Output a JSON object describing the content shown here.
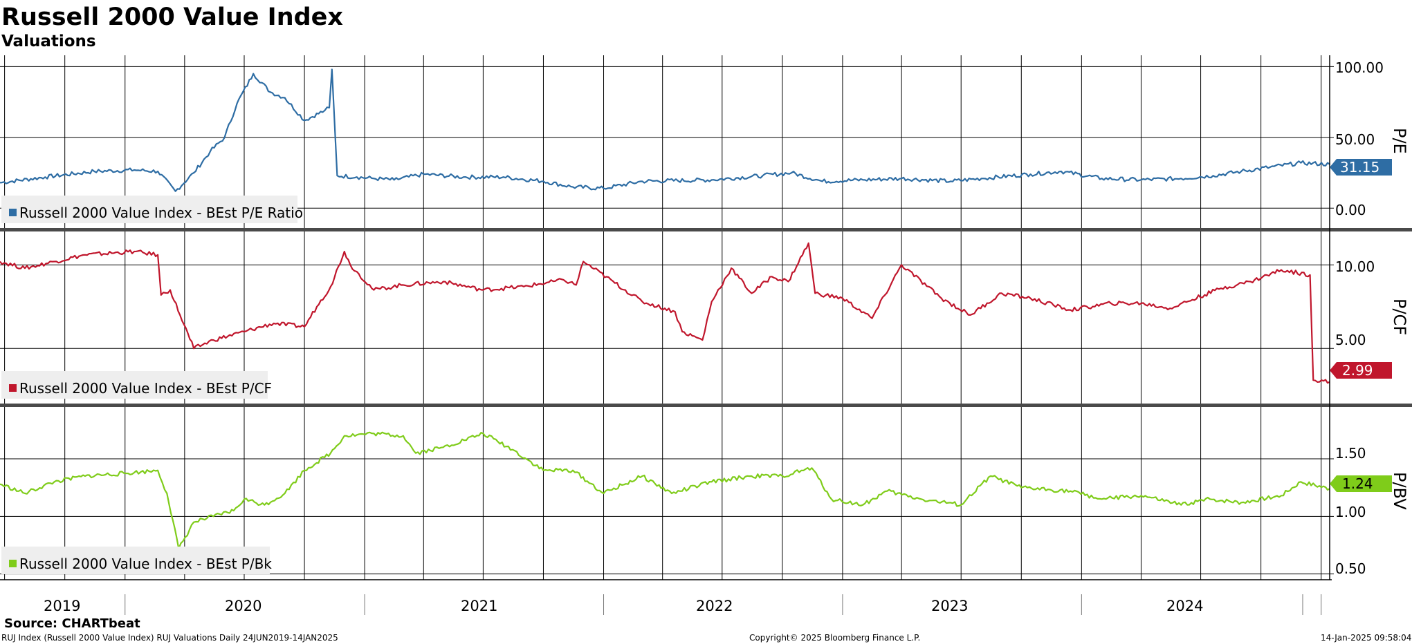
{
  "title": "Russell 2000 Value Index",
  "subtitle": "Valuations",
  "source": "Source: CHARTbeat",
  "footer": {
    "left": "RUJ Index (Russell 2000 Value Index) RUJ Valuations  Daily 24JUN2019-14JAN2025",
    "center": "Copyright© 2025 Bloomberg Finance L.P.",
    "right": "14-Jan-2025 09:58:04"
  },
  "colors": {
    "pe": "#2e6da4",
    "pcf": "#c0162c",
    "pbv": "#7fcc1a",
    "legend_bg": "#eeeeee"
  },
  "chart_data": [
    {
      "type": "line",
      "name": "P/E",
      "axis_label": "P/E",
      "legend": "Russell 2000 Value Index - BEst P/E Ratio",
      "last_value": "31.15",
      "y_ticks": [
        "100.00",
        "50.00",
        "0.00"
      ],
      "ylim": [
        -14,
        108
      ],
      "x": [
        "2019-06-24",
        "2019-09-01",
        "2019-11-15",
        "2020-01-15",
        "2020-02-20",
        "2020-03-18",
        "2020-04-15",
        "2020-05-10",
        "2020-06-01",
        "2020-06-20",
        "2020-07-15",
        "2020-08-10",
        "2020-09-01",
        "2020-10-01",
        "2020-11-01",
        "2020-11-08",
        "2020-11-12",
        "2020-11-20",
        "2020-12-20",
        "2021-01-15",
        "2021-02-15",
        "2021-04-01",
        "2021-06-01",
        "2021-08-01",
        "2021-10-01",
        "2021-11-15",
        "2022-01-01",
        "2022-03-01",
        "2022-06-15",
        "2022-09-01",
        "2022-10-15",
        "2022-12-01",
        "2023-02-01",
        "2023-04-01",
        "2023-06-15",
        "2023-08-01",
        "2023-10-15",
        "2023-12-01",
        "2024-02-01",
        "2024-04-01",
        "2024-06-01",
        "2024-07-20",
        "2024-09-01",
        "2024-10-15",
        "2024-12-01",
        "2025-01-14"
      ],
      "y": [
        18,
        22,
        26,
        27,
        26,
        12,
        25,
        40,
        50,
        74,
        95,
        82,
        78,
        62,
        69,
        71,
        98,
        23,
        22,
        21,
        20,
        24,
        22,
        22,
        19,
        15,
        14,
        19,
        20,
        23,
        25,
        19,
        20,
        21,
        19,
        21,
        24,
        26,
        21,
        20,
        21,
        23,
        26,
        29,
        32,
        31
      ]
    },
    {
      "type": "line",
      "name": "P/CF",
      "axis_label": "P/CF",
      "legend": "Russell 2000 Value Index - BEst P/CF",
      "last_value": "2.99",
      "y_ticks": [
        "10.00",
        "5.00"
      ],
      "ylim": [
        1.7,
        12
      ],
      "x": [
        "2019-06-24",
        "2019-08-01",
        "2019-09-15",
        "2019-11-01",
        "2020-01-15",
        "2020-02-20",
        "2020-02-25",
        "2020-03-10",
        "2020-03-25",
        "2020-04-15",
        "2020-05-15",
        "2020-07-01",
        "2020-08-15",
        "2020-10-01",
        "2020-10-20",
        "2020-11-10",
        "2020-12-01",
        "2020-12-10",
        "2021-01-15",
        "2021-03-01",
        "2021-05-01",
        "2021-07-01",
        "2021-09-01",
        "2021-11-01",
        "2021-11-20",
        "2021-12-01",
        "2022-03-01",
        "2022-04-20",
        "2022-05-01",
        "2022-06-01",
        "2022-06-15",
        "2022-07-15",
        "2022-08-15",
        "2022-09-15",
        "2022-10-10",
        "2022-11-10",
        "2022-11-20",
        "2023-01-01",
        "2023-02-15",
        "2023-04-01",
        "2023-06-01",
        "2023-07-15",
        "2023-09-01",
        "2023-10-15",
        "2023-12-15",
        "2024-02-15",
        "2024-04-01",
        "2024-05-15",
        "2024-08-01",
        "2024-09-15",
        "2024-11-01",
        "2024-12-15",
        "2024-12-20",
        "2025-01-14"
      ],
      "y": [
        10.2,
        9.8,
        10.2,
        10.6,
        10.8,
        10.6,
        8.2,
        8.5,
        7.0,
        5.0,
        5.5,
        6.0,
        6.5,
        6.3,
        7.5,
        8.7,
        10.8,
        10.0,
        8.5,
        8.8,
        9.0,
        8.5,
        8.7,
        9.1,
        8.8,
        10.2,
        7.8,
        7.2,
        6.0,
        5.5,
        7.8,
        9.8,
        8.3,
        9.3,
        9.0,
        11.3,
        8.3,
        8.0,
        6.8,
        10.0,
        8.0,
        7.0,
        8.3,
        8.0,
        7.3,
        7.7,
        7.7,
        7.4,
        8.6,
        9.0,
        9.7,
        9.4,
        3.1,
        2.99
      ]
    },
    {
      "type": "line",
      "name": "P/BV",
      "axis_label": "P/BV",
      "legend": "Russell 2000 Value Index - BEst P/Bk",
      "last_value": "1.24",
      "y_ticks": [
        "1.50",
        "1.00",
        "0.50"
      ],
      "ylim": [
        0.45,
        1.95
      ],
      "x": [
        "2019-06-24",
        "2019-08-01",
        "2019-09-15",
        "2019-11-01",
        "2020-01-15",
        "2020-02-20",
        "2020-03-05",
        "2020-03-23",
        "2020-04-15",
        "2020-05-15",
        "2020-06-15",
        "2020-07-01",
        "2020-08-01",
        "2020-09-01",
        "2020-10-01",
        "2020-11-10",
        "2020-12-01",
        "2021-01-15",
        "2021-03-01",
        "2021-03-20",
        "2021-05-01",
        "2021-07-01",
        "2021-08-15",
        "2021-10-01",
        "2021-11-15",
        "2022-01-01",
        "2022-03-01",
        "2022-04-15",
        "2022-06-15",
        "2022-08-15",
        "2022-10-01",
        "2022-11-15",
        "2022-12-15",
        "2023-02-01",
        "2023-03-10",
        "2023-05-01",
        "2023-07-01",
        "2023-08-15",
        "2023-10-01",
        "2023-12-15",
        "2024-02-01",
        "2024-04-01",
        "2024-06-01",
        "2024-07-15",
        "2024-09-01",
        "2024-11-01",
        "2024-12-01",
        "2025-01-14"
      ],
      "y": [
        1.28,
        1.2,
        1.3,
        1.35,
        1.38,
        1.4,
        1.2,
        0.72,
        0.95,
        1.0,
        1.05,
        1.15,
        1.1,
        1.2,
        1.4,
        1.55,
        1.7,
        1.72,
        1.7,
        1.55,
        1.6,
        1.72,
        1.58,
        1.4,
        1.4,
        1.2,
        1.35,
        1.2,
        1.3,
        1.35,
        1.35,
        1.42,
        1.15,
        1.1,
        1.22,
        1.15,
        1.1,
        1.35,
        1.25,
        1.22,
        1.15,
        1.18,
        1.1,
        1.15,
        1.12,
        1.18,
        1.3,
        1.24
      ]
    }
  ],
  "x_axis": {
    "start": "2019-06-24",
    "end": "2025-01-14",
    "year_labels": [
      "2019",
      "2020",
      "2021",
      "2022",
      "2023",
      "2024"
    ],
    "grid": "quarterly"
  }
}
